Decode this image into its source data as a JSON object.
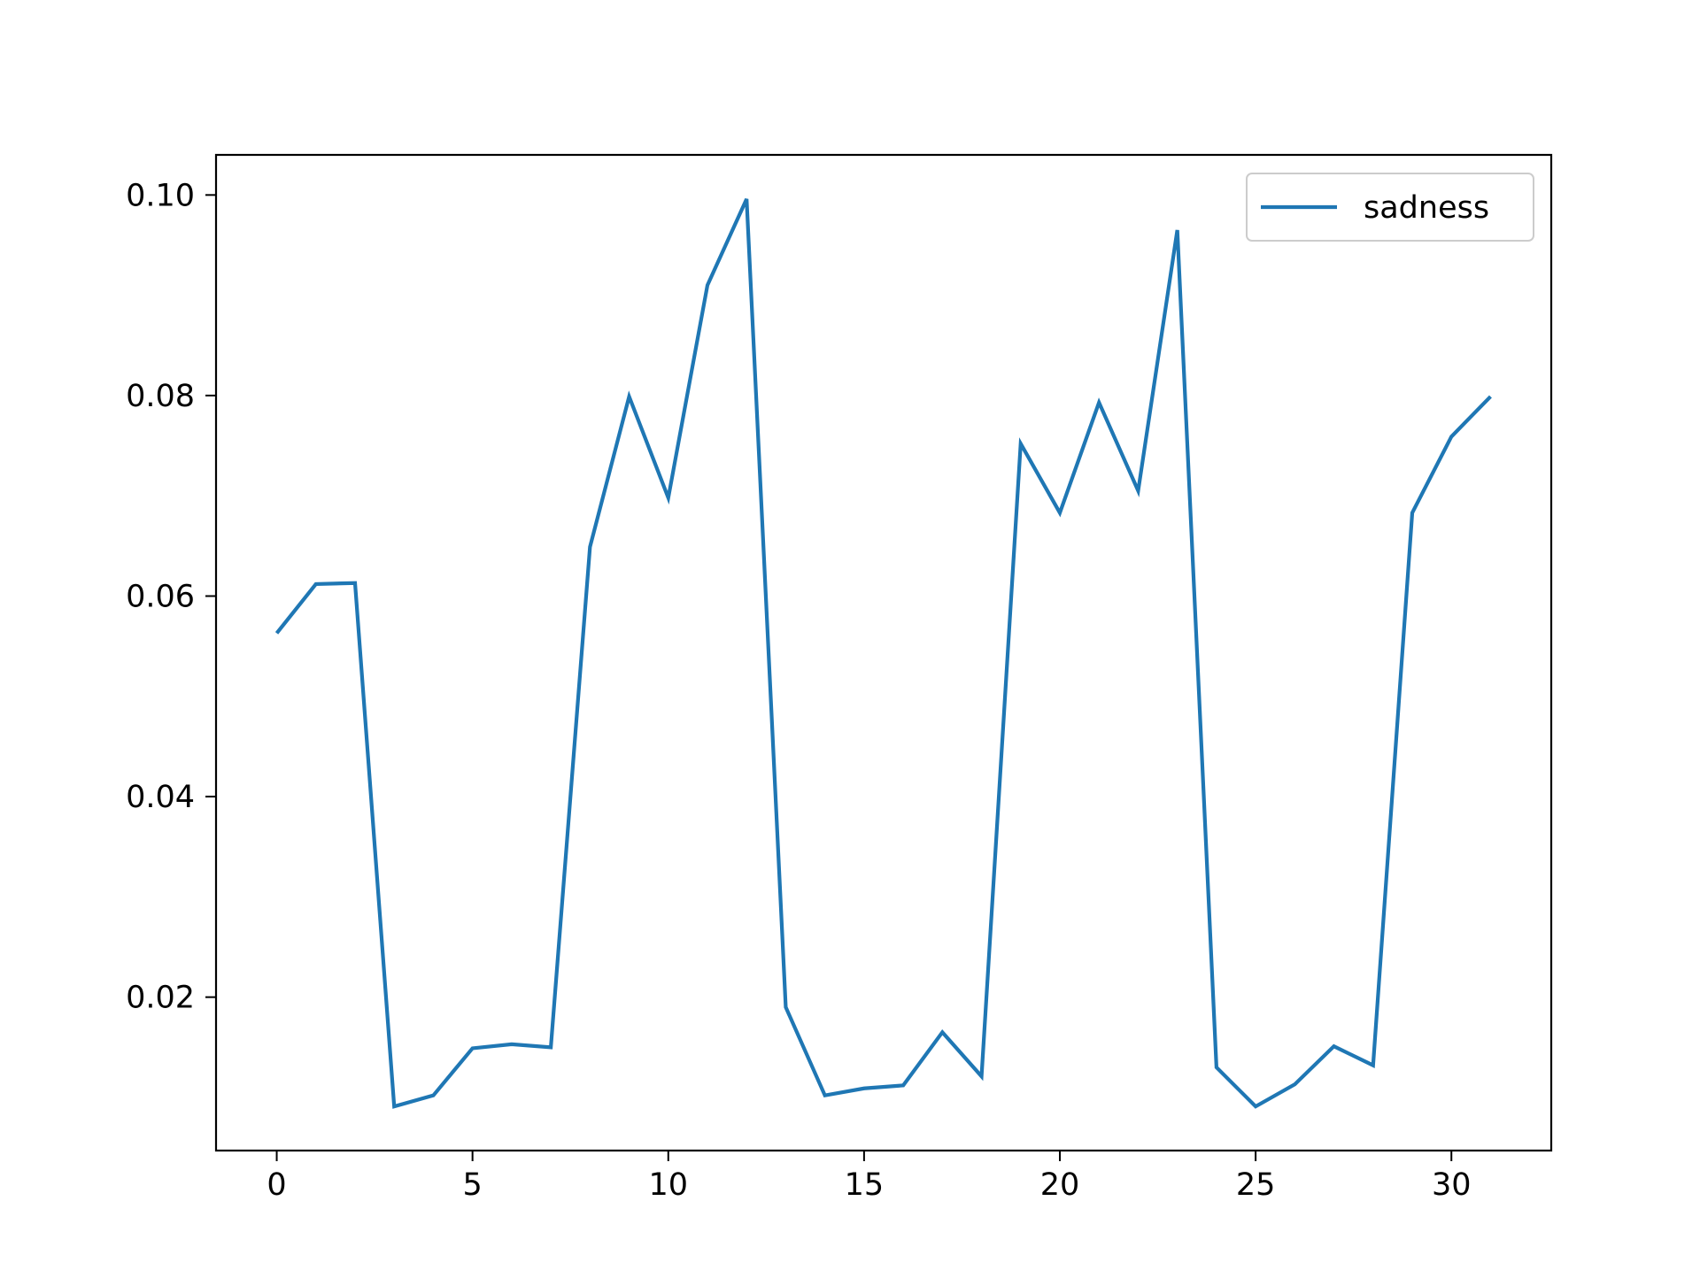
{
  "chart_data": {
    "type": "line",
    "title": "",
    "xlabel": "",
    "ylabel": "",
    "x": [
      0,
      1,
      2,
      3,
      4,
      5,
      6,
      7,
      8,
      9,
      10,
      11,
      12,
      13,
      14,
      15,
      16,
      17,
      18,
      19,
      20,
      21,
      22,
      23,
      24,
      25,
      26,
      27,
      28,
      29,
      30,
      31
    ],
    "series": [
      {
        "name": "sadness",
        "color": "#1f77b4",
        "values": [
          0.0563,
          0.0612,
          0.0613,
          0.0091,
          0.0102,
          0.0149,
          0.0153,
          0.015,
          0.0649,
          0.0799,
          0.0698,
          0.091,
          0.0996,
          0.019,
          0.0102,
          0.0109,
          0.0112,
          0.0165,
          0.0121,
          0.0752,
          0.0683,
          0.0793,
          0.0705,
          0.0965,
          0.013,
          0.0091,
          0.0113,
          0.0151,
          0.0132,
          0.0683,
          0.0759,
          0.0799
        ]
      }
    ],
    "xlim": [
      -1.55,
      32.55
    ],
    "ylim": [
      0.0047,
      0.104
    ],
    "xticks": [
      0,
      5,
      10,
      15,
      20,
      25,
      30
    ],
    "xtick_labels": [
      "0",
      "5",
      "10",
      "15",
      "20",
      "25",
      "30"
    ],
    "yticks": [
      0.02,
      0.04,
      0.06,
      0.08,
      0.1
    ],
    "ytick_labels": [
      "0.02",
      "0.04",
      "0.06",
      "0.08",
      "0.10"
    ],
    "grid": false,
    "legend_position": "top-right"
  }
}
